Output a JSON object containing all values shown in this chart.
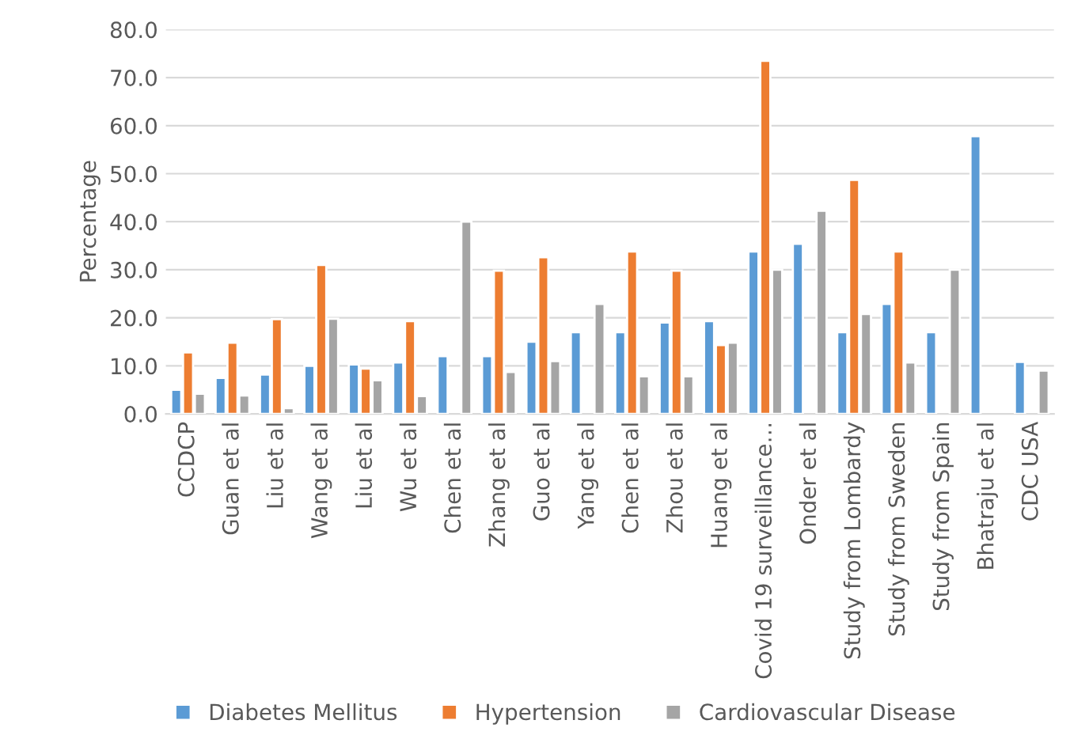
{
  "chart_data": {
    "type": "bar",
    "ylabel": "Percentage",
    "categories": [
      "CCDCP",
      "Guan et al",
      "Liu et al",
      "Wang et al",
      "Liu et al",
      "Wu et al",
      "Chen et al",
      "Zhang et al",
      "Guo et al",
      "Yang et al",
      "Chen et al",
      "Zhou et al",
      "Huang et al",
      "Covid 19 surveillance…",
      "Onder et al",
      "Study from Lombardy",
      "Study from Sweden",
      "Study from Spain",
      "Bhatraju et al",
      "CDC USA"
    ],
    "series": [
      {
        "name": "Diabetes Mellitus",
        "color": "#5b9bd5",
        "values": [
          5,
          7.5,
          8.2,
          10,
          10.3,
          10.7,
          12,
          12,
          15,
          17,
          17,
          19,
          19.3,
          33.8,
          35.4,
          17,
          22.9,
          17,
          57.8,
          10.8
        ]
      },
      {
        "name": "Hypertension",
        "color": "#ed7d31",
        "values": [
          12.8,
          14.8,
          19.7,
          31,
          9.4,
          19.3,
          null,
          29.8,
          32.6,
          null,
          33.8,
          29.8,
          14.3,
          73.5,
          null,
          48.7,
          33.8,
          null,
          null,
          null
        ]
      },
      {
        "name": "Cardiovascular Disease",
        "color": "#a5a5a5",
        "values": [
          4.2,
          3.8,
          1.2,
          19.8,
          7,
          3.7,
          40,
          8.7,
          11,
          22.9,
          7.8,
          7.8,
          14.8,
          30,
          42.3,
          20.8,
          10.7,
          30,
          null,
          9
        ]
      }
    ],
    "ylim": [
      0,
      80
    ],
    "yticks": [
      {
        "value": 0,
        "label": "0.0"
      },
      {
        "value": 10,
        "label": "10.0"
      },
      {
        "value": 20,
        "label": "20.0"
      },
      {
        "value": 30,
        "label": "30.0"
      },
      {
        "value": 40,
        "label": "40.0"
      },
      {
        "value": 50,
        "label": "50.0"
      },
      {
        "value": 60,
        "label": "60.0"
      },
      {
        "value": 70,
        "label": "70.0"
      },
      {
        "value": 80,
        "label": "80.0"
      }
    ],
    "grid": "y",
    "legend": "bottom"
  }
}
